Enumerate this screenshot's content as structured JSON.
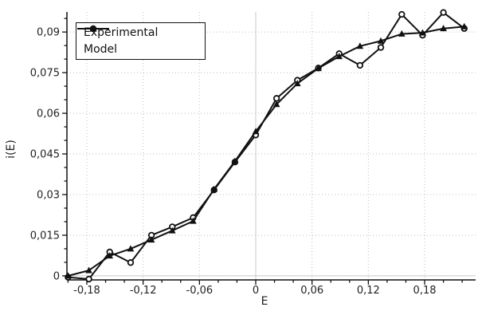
{
  "colors": {
    "series": "#111111",
    "grid_dotted": "#bcbcbc",
    "zero_line": "#c8c8c8",
    "axis": "#111111",
    "text": "#222222",
    "background": "#ffffff"
  },
  "legend": {
    "entries": [
      {
        "label": "Experimental",
        "marker": "circle"
      },
      {
        "label": "Model",
        "marker": "triangle"
      }
    ],
    "position": "top-left"
  },
  "chart_data": {
    "type": "line",
    "title": "",
    "xlabel": "E",
    "ylabel": "i(E)",
    "xlim": [
      -0.2012,
      0.2343
    ],
    "ylim": [
      -0.0015,
      0.0974
    ],
    "grid": "dotted major gridlines; solid light-gray lines at x=0 and y=0",
    "legend_position": "top-left",
    "x": [
      -0.2,
      -0.1778,
      -0.1556,
      -0.1333,
      -0.1111,
      -0.0889,
      -0.0667,
      -0.0444,
      -0.0222,
      0.0,
      0.0222,
      0.0444,
      0.0667,
      0.0889,
      0.1111,
      0.1333,
      0.1556,
      0.1778,
      0.2,
      0.2222
    ],
    "series": [
      {
        "name": "Experimental",
        "marker": "circle",
        "values": [
          -0.0005,
          -0.0012,
          0.0088,
          0.0049,
          0.015,
          0.0181,
          0.0215,
          0.0317,
          0.042,
          0.052,
          0.0655,
          0.0722,
          0.0767,
          0.082,
          0.0777,
          0.0843,
          0.0965,
          0.0888,
          0.0972,
          0.0913
        ]
      },
      {
        "name": "Model",
        "marker": "triangle",
        "values": [
          0.0,
          0.002,
          0.0074,
          0.01,
          0.0133,
          0.0167,
          0.0202,
          0.032,
          0.0423,
          0.0533,
          0.0633,
          0.071,
          0.0766,
          0.081,
          0.0848,
          0.0867,
          0.0893,
          0.0897,
          0.0913,
          0.092
        ]
      }
    ],
    "x_ticks_major": [
      {
        "v": -0.18,
        "label": "-0,18"
      },
      {
        "v": -0.12,
        "label": "-0,12"
      },
      {
        "v": -0.06,
        "label": "-0,06"
      },
      {
        "v": 0.0,
        "label": "0"
      },
      {
        "v": 0.06,
        "label": "0,06"
      },
      {
        "v": 0.12,
        "label": "0,12"
      },
      {
        "v": 0.18,
        "label": "0,18"
      }
    ],
    "y_ticks_major": [
      {
        "v": 0.0,
        "label": "0"
      },
      {
        "v": 0.015,
        "label": "0,015"
      },
      {
        "v": 0.03,
        "label": "0,03"
      },
      {
        "v": 0.045,
        "label": "0,045"
      },
      {
        "v": 0.06,
        "label": "0,06"
      },
      {
        "v": 0.075,
        "label": "0,075"
      },
      {
        "v": 0.09,
        "label": "0,09"
      }
    ],
    "x_minor_step": 0.02,
    "y_minor_step": 0.005
  }
}
